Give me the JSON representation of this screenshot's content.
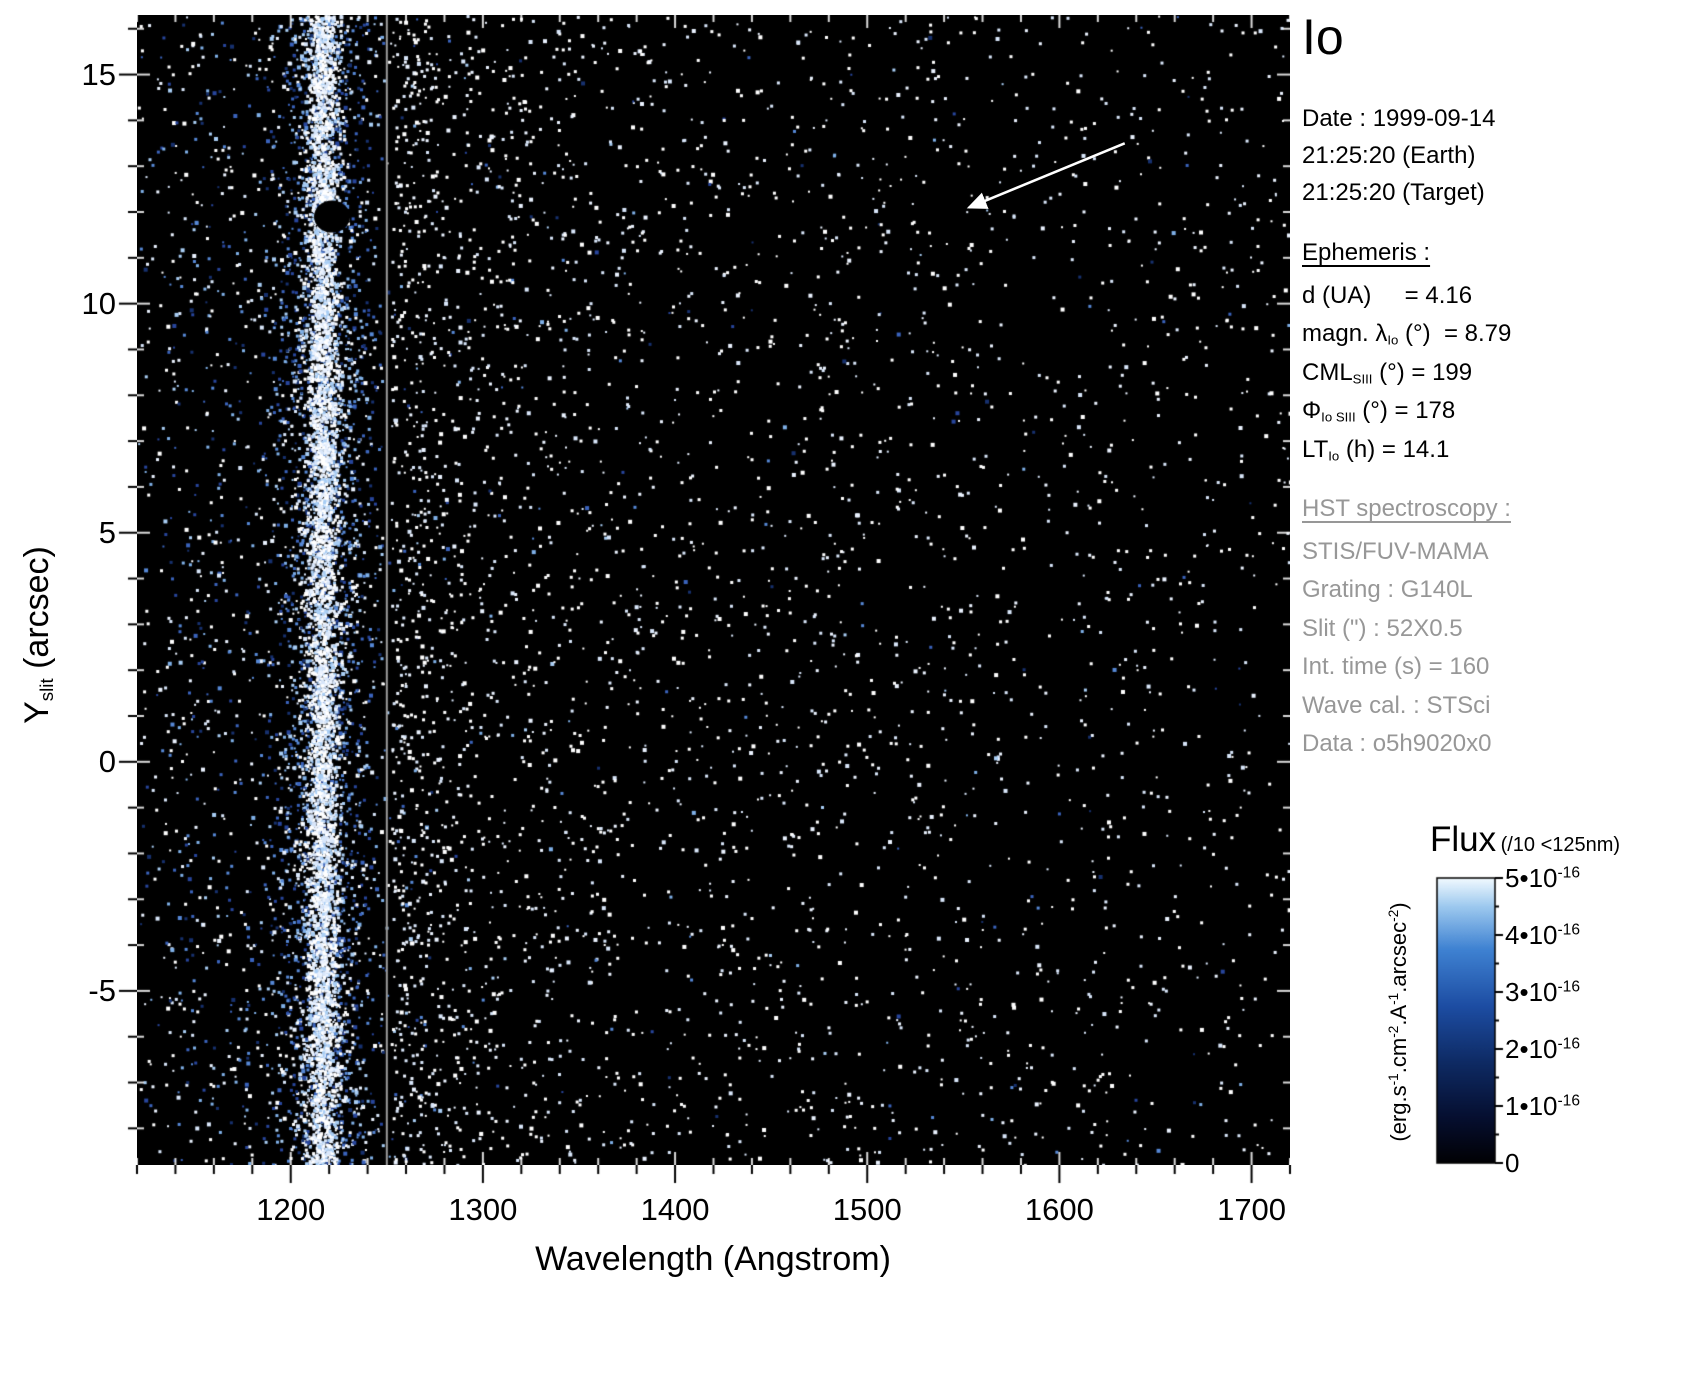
{
  "title": "Io",
  "info_panel": {
    "date_line": "Date : 1999-09-14",
    "time_earth": "21:25:20 (Earth)",
    "time_target": "21:25:20 (Target)",
    "ephemeris_header": "Ephemeris :",
    "ephemeris": [
      {
        "pre": "d (UA)",
        "sub": "",
        "post": "     = 4.16"
      },
      {
        "pre": "magn. λ",
        "sub": "Io",
        "post": " (°)  = 8.79"
      },
      {
        "pre": "CML",
        "sub": "SIII",
        "post": " (°) = 199"
      },
      {
        "pre": "Φ",
        "sub": "Io SIII",
        "post": " (°) = 178"
      },
      {
        "pre": "LT",
        "sub": "Io",
        "post": " (h) = 14.1"
      }
    ],
    "hst_header": "HST spectroscopy :",
    "hst_lines": [
      "STIS/FUV-MAMA",
      "Grating : G140L",
      "Slit (\") : 52X0.5",
      "Int. time (s) = 160",
      "Wave cal. : STSci",
      "Data : o5h9020x0"
    ]
  },
  "colorbar": {
    "title": "Flux",
    "title_note": "(/10 <125nm)",
    "ticks": [
      {
        "base": "5•10",
        "exp": "-16"
      },
      {
        "base": "4•10",
        "exp": "-16"
      },
      {
        "base": "3•10",
        "exp": "-16"
      },
      {
        "base": "2•10",
        "exp": "-16"
      },
      {
        "base": "1•10",
        "exp": "-16"
      },
      {
        "base": "0",
        "exp": ""
      }
    ],
    "unit_parts": [
      {
        "t": "(erg.s"
      },
      {
        "sup": "-1"
      },
      {
        "t": ".cm"
      },
      {
        "sup": "-2"
      },
      {
        "t": ".A"
      },
      {
        "sup": "-1"
      },
      {
        "t": ".arcsec"
      },
      {
        "sup": "-2"
      },
      {
        "t": ")"
      }
    ],
    "gradient": [
      {
        "o": 0.0,
        "c": "#010104"
      },
      {
        "o": 0.16,
        "c": "#060f30"
      },
      {
        "o": 0.35,
        "c": "#0e2a63"
      },
      {
        "o": 0.55,
        "c": "#1d4da3"
      },
      {
        "o": 0.75,
        "c": "#3f82d2"
      },
      {
        "o": 0.9,
        "c": "#9dc9ef"
      },
      {
        "o": 1.0,
        "c": "#f2faff"
      }
    ]
  },
  "chart_data": {
    "type": "heatmap",
    "title": "Io FUV spectral image, HST STIS/G140L slit spectrum",
    "xlabel": "Wavelength (Angstrom)",
    "ylabel": "Y slit (arcsec)",
    "ylabel_parts": {
      "pre": "Y",
      "sub": "slit",
      "post": " (arcsec)"
    },
    "xlim": [
      1120,
      1720
    ],
    "xticks": [
      1200,
      1300,
      1400,
      1500,
      1600,
      1700
    ],
    "x_minor_step": 20,
    "ylim": [
      -8.8,
      16.3
    ],
    "yticks": [
      15,
      10,
      5,
      0,
      -5
    ],
    "y_minor_step": 1,
    "background": "#000000",
    "flux_scale": {
      "min": 0,
      "max": 5e-16,
      "units": "erg.s-1.cm-2.A-1.arcsec-2",
      "note": "flux divided by 10 below 125 nm"
    },
    "features": {
      "lyman_alpha_band": {
        "center_wavelength": 1216,
        "note": "bright H Lyman-alpha emission filling the slit at all Y"
      },
      "detector_seam_wavelength": 1250,
      "dark_gap": {
        "wavelength": 1221.5,
        "y_arcsec": 11.9
      },
      "arrow": {
        "from_wavelength": 1634,
        "from_arcsec": 13.5,
        "to_wavelength": 1553,
        "to_arcsec": 12.1
      }
    },
    "speckle": {
      "seed": 19990914,
      "dot_colors_white": [
        "#ffffff",
        "#ffffff",
        "#eaf2ff",
        "#d8e6fa"
      ],
      "dot_colors_blue": [
        "#a8cdf4",
        "#7fb0e8",
        "#5688d6",
        "#3a63bc",
        "#27459c",
        "#16306e"
      ],
      "band_core": {
        "n": 5200,
        "sigma_A": 4.5
      },
      "band_halo": {
        "n": 3000,
        "sigma_A": 12
      },
      "left_noise": {
        "n": 1250,
        "range": [
          1133,
          1248
        ]
      },
      "left_edge_noise": {
        "n": 70,
        "range": [
          1120,
          1133
        ]
      },
      "seam_burst": {
        "n": 750,
        "range": [
          1252,
          1330
        ]
      },
      "right_noise": {
        "n": 2500,
        "range": [
          1252,
          1720
        ],
        "falloff_A": 260
      },
      "global_sprinkle": {
        "n": 500
      }
    }
  }
}
